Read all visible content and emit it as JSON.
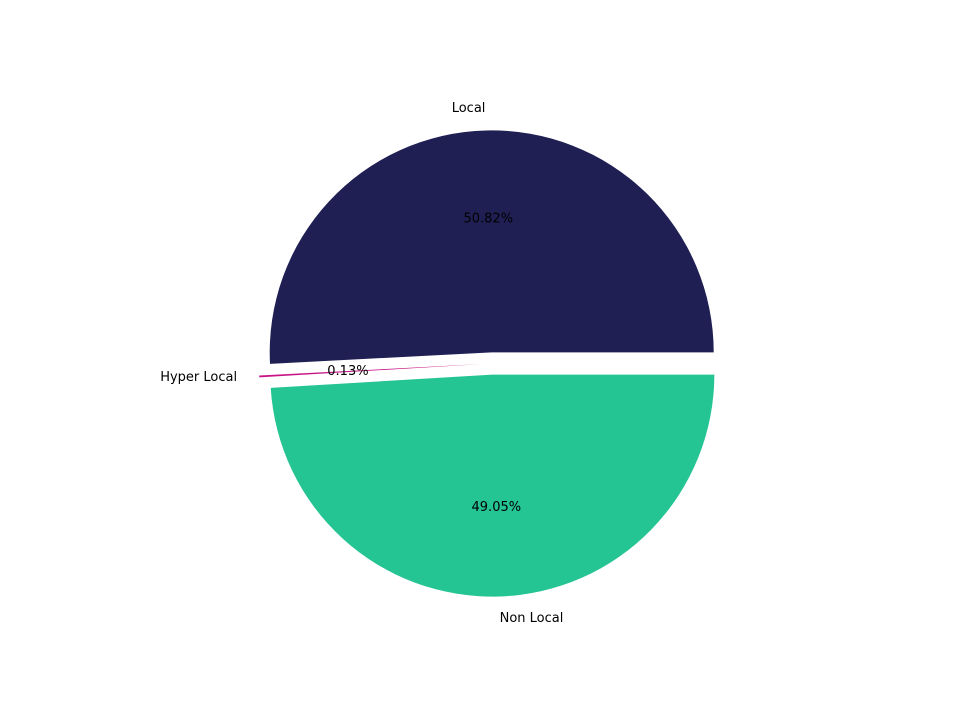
{
  "chart_data": {
    "type": "pie",
    "categories": [
      "Local",
      "Hyper Local",
      "Non Local"
    ],
    "values": [
      50.82,
      0.13,
      49.05
    ],
    "value_labels": [
      "50.82%",
      "0.13%",
      "49.05%"
    ],
    "colors": [
      "#1f1f54",
      "#c71585",
      "#25c493"
    ]
  }
}
